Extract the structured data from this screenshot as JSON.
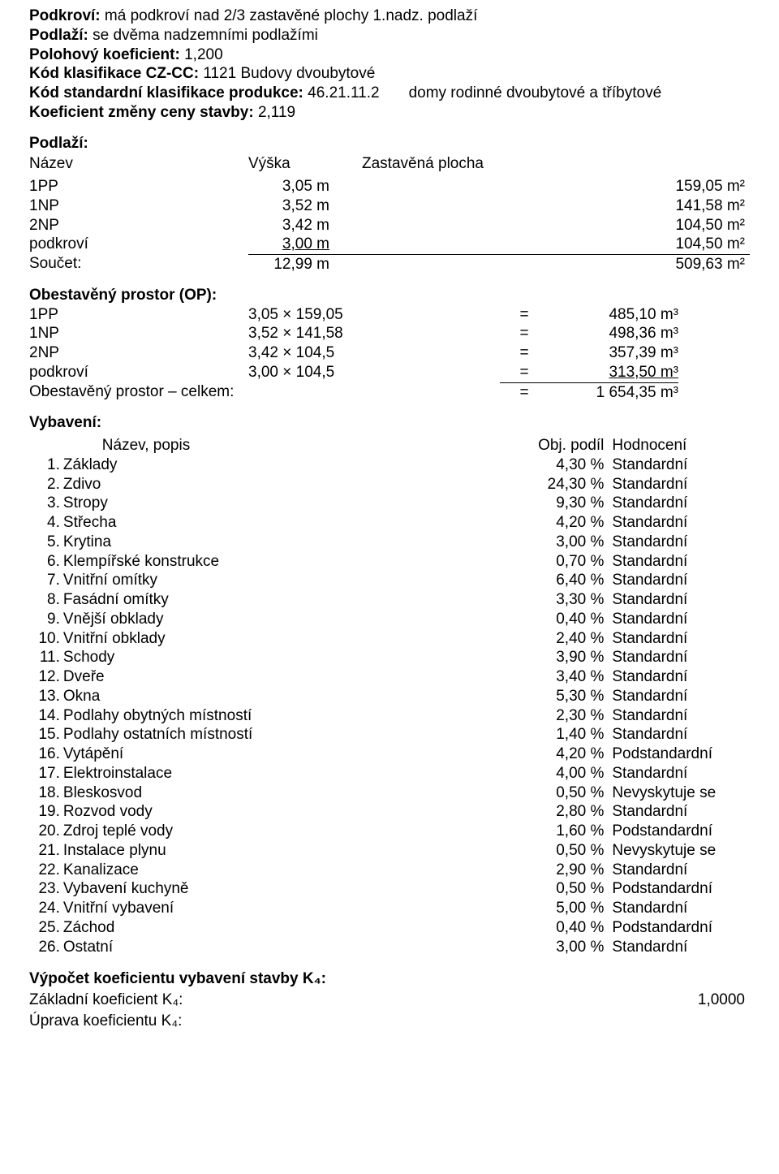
{
  "header": {
    "lines": [
      {
        "label": "Podkroví:",
        "value": "má podkroví nad 2/3 zastavěné plochy 1.nadz. podlaží"
      },
      {
        "label": "Podlaží:",
        "value": "se dvěma nadzemními podlažími"
      },
      {
        "label": "Polohový koeficient:",
        "value": "1,200"
      },
      {
        "label": "Kód klasifikace CZ-CC:",
        "value": "1121 Budovy dvoubytové"
      },
      {
        "label": "Kód standardní klasifikace produkce:",
        "value": "46.21.11.2",
        "suffix": "domy rodinné dvoubytové a tříbytové"
      },
      {
        "label": "Koeficient změny ceny stavby:",
        "value": "2,119"
      }
    ]
  },
  "floors": {
    "title": "Podlaží:",
    "headers": {
      "c1": "Název",
      "c2": "Výška",
      "c3": "Zastavěná plocha"
    },
    "rows": [
      {
        "name": "1PP",
        "h": "3,05 m",
        "area": "159,05 m²"
      },
      {
        "name": "1NP",
        "h": "3,52 m",
        "area": "141,58 m²"
      },
      {
        "name": "2NP",
        "h": "3,42 m",
        "area": "104,50 m²"
      },
      {
        "name": "podkroví",
        "h": "3,00 m",
        "area": "104,50 m²"
      }
    ],
    "sum": {
      "name": "Součet:",
      "h": "12,99 m",
      "area": "509,63 m²"
    }
  },
  "op": {
    "title": "Obestavěný prostor (OP):",
    "rows": [
      {
        "name": "1PP",
        "expr": "3,05 × 159,05",
        "eq": "=",
        "val": "485,10 m³"
      },
      {
        "name": "1NP",
        "expr": "3,52 × 141,58",
        "eq": "=",
        "val": "498,36 m³"
      },
      {
        "name": "2NP",
        "expr": "3,42 × 104,5",
        "eq": "=",
        "val": "357,39 m³"
      },
      {
        "name": "podkroví",
        "expr": "3,00 × 104,5",
        "eq": "=",
        "val": "313,50 m³"
      }
    ],
    "total": {
      "label": "Obestavěný prostor – celkem:",
      "eq": "=",
      "val": "1 654,35 m³"
    }
  },
  "equipment": {
    "title": "Vybavení:",
    "headers": {
      "c2": "Název, popis",
      "c3": "Obj. podíl",
      "c4": "Hodnocení"
    },
    "rows": [
      {
        "i": "1.",
        "name": "Základy",
        "pct": "4,30 %",
        "rating": "Standardní"
      },
      {
        "i": "2.",
        "name": "Zdivo",
        "pct": "24,30 %",
        "rating": "Standardní"
      },
      {
        "i": "3.",
        "name": "Stropy",
        "pct": "9,30 %",
        "rating": "Standardní"
      },
      {
        "i": "4.",
        "name": "Střecha",
        "pct": "4,20 %",
        "rating": "Standardní"
      },
      {
        "i": "5.",
        "name": "Krytina",
        "pct": "3,00 %",
        "rating": "Standardní"
      },
      {
        "i": "6.",
        "name": "Klempířské konstrukce",
        "pct": "0,70 %",
        "rating": "Standardní"
      },
      {
        "i": "7.",
        "name": "Vnitřní omítky",
        "pct": "6,40 %",
        "rating": "Standardní"
      },
      {
        "i": "8.",
        "name": "Fasádní omítky",
        "pct": "3,30 %",
        "rating": "Standardní"
      },
      {
        "i": "9.",
        "name": "Vnější obklady",
        "pct": "0,40 %",
        "rating": "Standardní"
      },
      {
        "i": "10.",
        "name": "Vnitřní obklady",
        "pct": "2,40 %",
        "rating": "Standardní"
      },
      {
        "i": "11.",
        "name": "Schody",
        "pct": "3,90 %",
        "rating": "Standardní"
      },
      {
        "i": "12.",
        "name": "Dveře",
        "pct": "3,40 %",
        "rating": "Standardní"
      },
      {
        "i": "13.",
        "name": "Okna",
        "pct": "5,30 %",
        "rating": "Standardní"
      },
      {
        "i": "14.",
        "name": "Podlahy obytných místností",
        "pct": "2,30 %",
        "rating": "Standardní"
      },
      {
        "i": "15.",
        "name": "Podlahy ostatních místností",
        "pct": "1,40 %",
        "rating": "Standardní"
      },
      {
        "i": "16.",
        "name": "Vytápění",
        "pct": "4,20 %",
        "rating": "Podstandardní"
      },
      {
        "i": "17.",
        "name": "Elektroinstalace",
        "pct": "4,00 %",
        "rating": "Standardní"
      },
      {
        "i": "18.",
        "name": "Bleskosvod",
        "pct": "0,50 %",
        "rating": "Nevyskytuje se"
      },
      {
        "i": "19.",
        "name": "Rozvod vody",
        "pct": "2,80 %",
        "rating": "Standardní"
      },
      {
        "i": "20.",
        "name": "Zdroj teplé vody",
        "pct": "1,60 %",
        "rating": "Podstandardní"
      },
      {
        "i": "21.",
        "name": "Instalace plynu",
        "pct": "0,50 %",
        "rating": "Nevyskytuje se"
      },
      {
        "i": "22.",
        "name": "Kanalizace",
        "pct": "2,90 %",
        "rating": "Standardní"
      },
      {
        "i": "23.",
        "name": "Vybavení kuchyně",
        "pct": "0,50 %",
        "rating": "Podstandardní"
      },
      {
        "i": "24.",
        "name": "Vnitřní vybavení",
        "pct": "5,00 %",
        "rating": "Standardní"
      },
      {
        "i": "25.",
        "name": "Záchod",
        "pct": "0,40 %",
        "rating": "Podstandardní"
      },
      {
        "i": "26.",
        "name": "Ostatní",
        "pct": "3,00 %",
        "rating": "Standardní"
      }
    ]
  },
  "k4": {
    "title": "Výpočet koeficientu vybavení stavby K₄:",
    "rows": [
      {
        "label": "Základní koeficient K₄:",
        "value": "1,0000"
      },
      {
        "label": "Úprava koeficientu K₄:",
        "value": ""
      }
    ]
  }
}
